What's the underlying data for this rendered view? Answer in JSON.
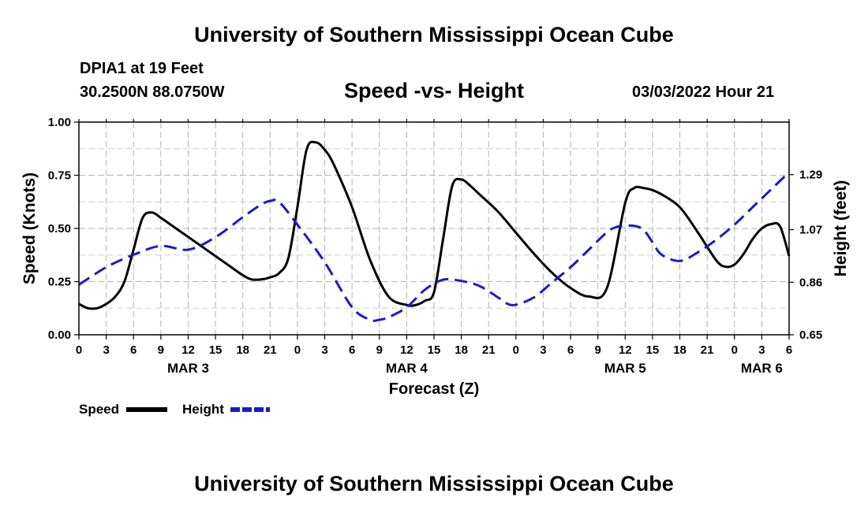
{
  "header": {
    "title": "University of Southern Mississippi Ocean Cube",
    "station": "DPIA1 at 19 Feet",
    "coords": "30.2500N  88.0750W",
    "subtitle": "Speed -vs- Height",
    "timestamp": "03/03/2022 Hour 21"
  },
  "footer": {
    "title": "University of Southern Mississippi Ocean Cube"
  },
  "chart_data": {
    "type": "line",
    "title": "Speed -vs- Height",
    "xlabel": "Forecast (Z)",
    "ylabel": "Speed (Knots)",
    "y2label": "Height (feet)",
    "x_unit": "hours since 03/03 00Z",
    "xlim": [
      0,
      78
    ],
    "ylim": [
      0,
      1
    ],
    "y2lim": [
      0.65,
      1.5
    ],
    "grid": true,
    "x_ticks": [
      0,
      3,
      6,
      9,
      12,
      15,
      18,
      21,
      24,
      27,
      30,
      33,
      36,
      39,
      42,
      45,
      48,
      51,
      54,
      57,
      60,
      63,
      66,
      69,
      72,
      75,
      78
    ],
    "x_tick_labels": [
      "0",
      "3",
      "6",
      "9",
      "12",
      "15",
      "18",
      "21",
      "0",
      "3",
      "6",
      "9",
      "12",
      "15",
      "18",
      "21",
      "0",
      "3",
      "6",
      "9",
      "12",
      "15",
      "18",
      "21",
      "0",
      "3",
      "6"
    ],
    "date_labels": [
      {
        "x": 12,
        "label": "MAR 3"
      },
      {
        "x": 36,
        "label": "MAR 4"
      },
      {
        "x": 60,
        "label": "MAR 5"
      },
      {
        "x": 75,
        "label": "MAR 6"
      }
    ],
    "y_ticks": [
      0,
      0.25,
      0.5,
      0.75,
      1
    ],
    "y_tick_labels": [
      "0.00",
      "0.25",
      "0.50",
      "0.75",
      "1.00"
    ],
    "y2_ticks": [
      0.65,
      0.86,
      1.07,
      1.29
    ],
    "y2_tick_labels": [
      "0.65",
      "0.86",
      "1.07",
      "1.29"
    ],
    "legend": [
      {
        "name": "Speed",
        "color": "#000000",
        "style": "solid"
      },
      {
        "name": "Height",
        "color": "#1a1acc",
        "style": "dashed"
      }
    ],
    "series": [
      {
        "name": "Speed",
        "axis": "left",
        "color": "#000000",
        "style": "solid",
        "x": [
          0,
          1,
          2,
          3,
          4,
          5,
          6,
          7,
          8,
          9,
          10,
          12,
          14,
          16,
          18,
          19,
          20,
          21,
          22,
          23,
          24,
          25,
          26,
          27,
          28,
          30,
          32,
          34,
          36,
          37,
          38,
          39,
          40,
          41,
          42,
          43,
          44,
          46,
          48,
          50,
          52,
          54,
          56,
          58,
          60,
          61,
          62,
          63,
          64,
          66,
          68,
          70,
          71,
          72,
          73,
          74,
          75,
          76,
          77,
          78
        ],
        "values": [
          0.145,
          0.125,
          0.125,
          0.145,
          0.18,
          0.25,
          0.4,
          0.55,
          0.575,
          0.55,
          0.52,
          0.46,
          0.4,
          0.34,
          0.28,
          0.26,
          0.26,
          0.27,
          0.29,
          0.36,
          0.6,
          0.87,
          0.905,
          0.87,
          0.8,
          0.6,
          0.35,
          0.18,
          0.14,
          0.14,
          0.16,
          0.2,
          0.45,
          0.7,
          0.73,
          0.7,
          0.66,
          0.58,
          0.48,
          0.38,
          0.29,
          0.22,
          0.18,
          0.22,
          0.62,
          0.69,
          0.69,
          0.68,
          0.66,
          0.6,
          0.48,
          0.35,
          0.32,
          0.33,
          0.38,
          0.45,
          0.5,
          0.52,
          0.51,
          0.37
        ]
      },
      {
        "name": "Height",
        "axis": "right",
        "color": "#1a1acc",
        "style": "dashed",
        "x": [
          0,
          3,
          6,
          9,
          12,
          15,
          18,
          20,
          21,
          22,
          24,
          27,
          30,
          32,
          33,
          34,
          36,
          38,
          40,
          42,
          44,
          46,
          47,
          48,
          50,
          52,
          54,
          56,
          58,
          59,
          60,
          61,
          62,
          63,
          64,
          66,
          68,
          70,
          72,
          74,
          76,
          78
        ],
        "values": [
          0.85,
          0.92,
          0.97,
          1.005,
          0.99,
          1.04,
          1.12,
          1.17,
          1.185,
          1.18,
          1.09,
          0.94,
          0.76,
          0.71,
          0.71,
          0.72,
          0.76,
          0.83,
          0.87,
          0.865,
          0.845,
          0.8,
          0.775,
          0.77,
          0.8,
          0.86,
          0.92,
          0.99,
          1.06,
          1.08,
          1.085,
          1.085,
          1.07,
          1.02,
          0.97,
          0.945,
          0.98,
          1.03,
          1.09,
          1.16,
          1.23,
          1.3
        ]
      }
    ]
  }
}
